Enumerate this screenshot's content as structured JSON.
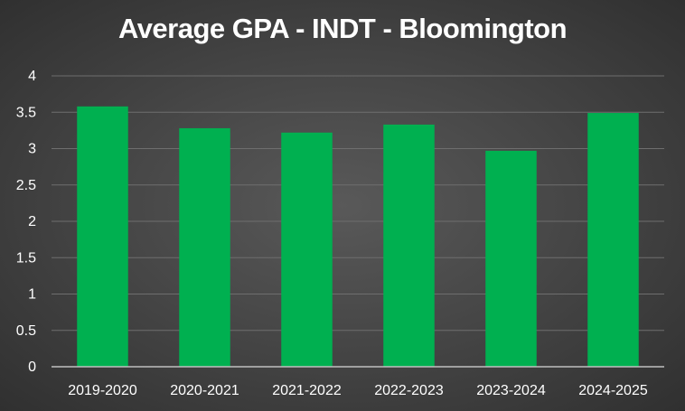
{
  "chart_data": {
    "type": "bar",
    "title": "Average GPA - INDT - Bloomington",
    "categories": [
      "2019-2020",
      "2020-2021",
      "2021-2022",
      "2022-2023",
      "2023-2024",
      "2024-2025"
    ],
    "values": [
      3.58,
      3.28,
      3.22,
      3.33,
      2.97,
      3.49
    ],
    "ylim": [
      0,
      4
    ],
    "yticks": [
      "0",
      "0.5",
      "1",
      "1.5",
      "2",
      "2.5",
      "3",
      "3.5",
      "4"
    ],
    "grid": true,
    "bar_color": "#00b050",
    "gridline_color": "#6e6e6e",
    "axis_color": "#bfbfbf"
  }
}
